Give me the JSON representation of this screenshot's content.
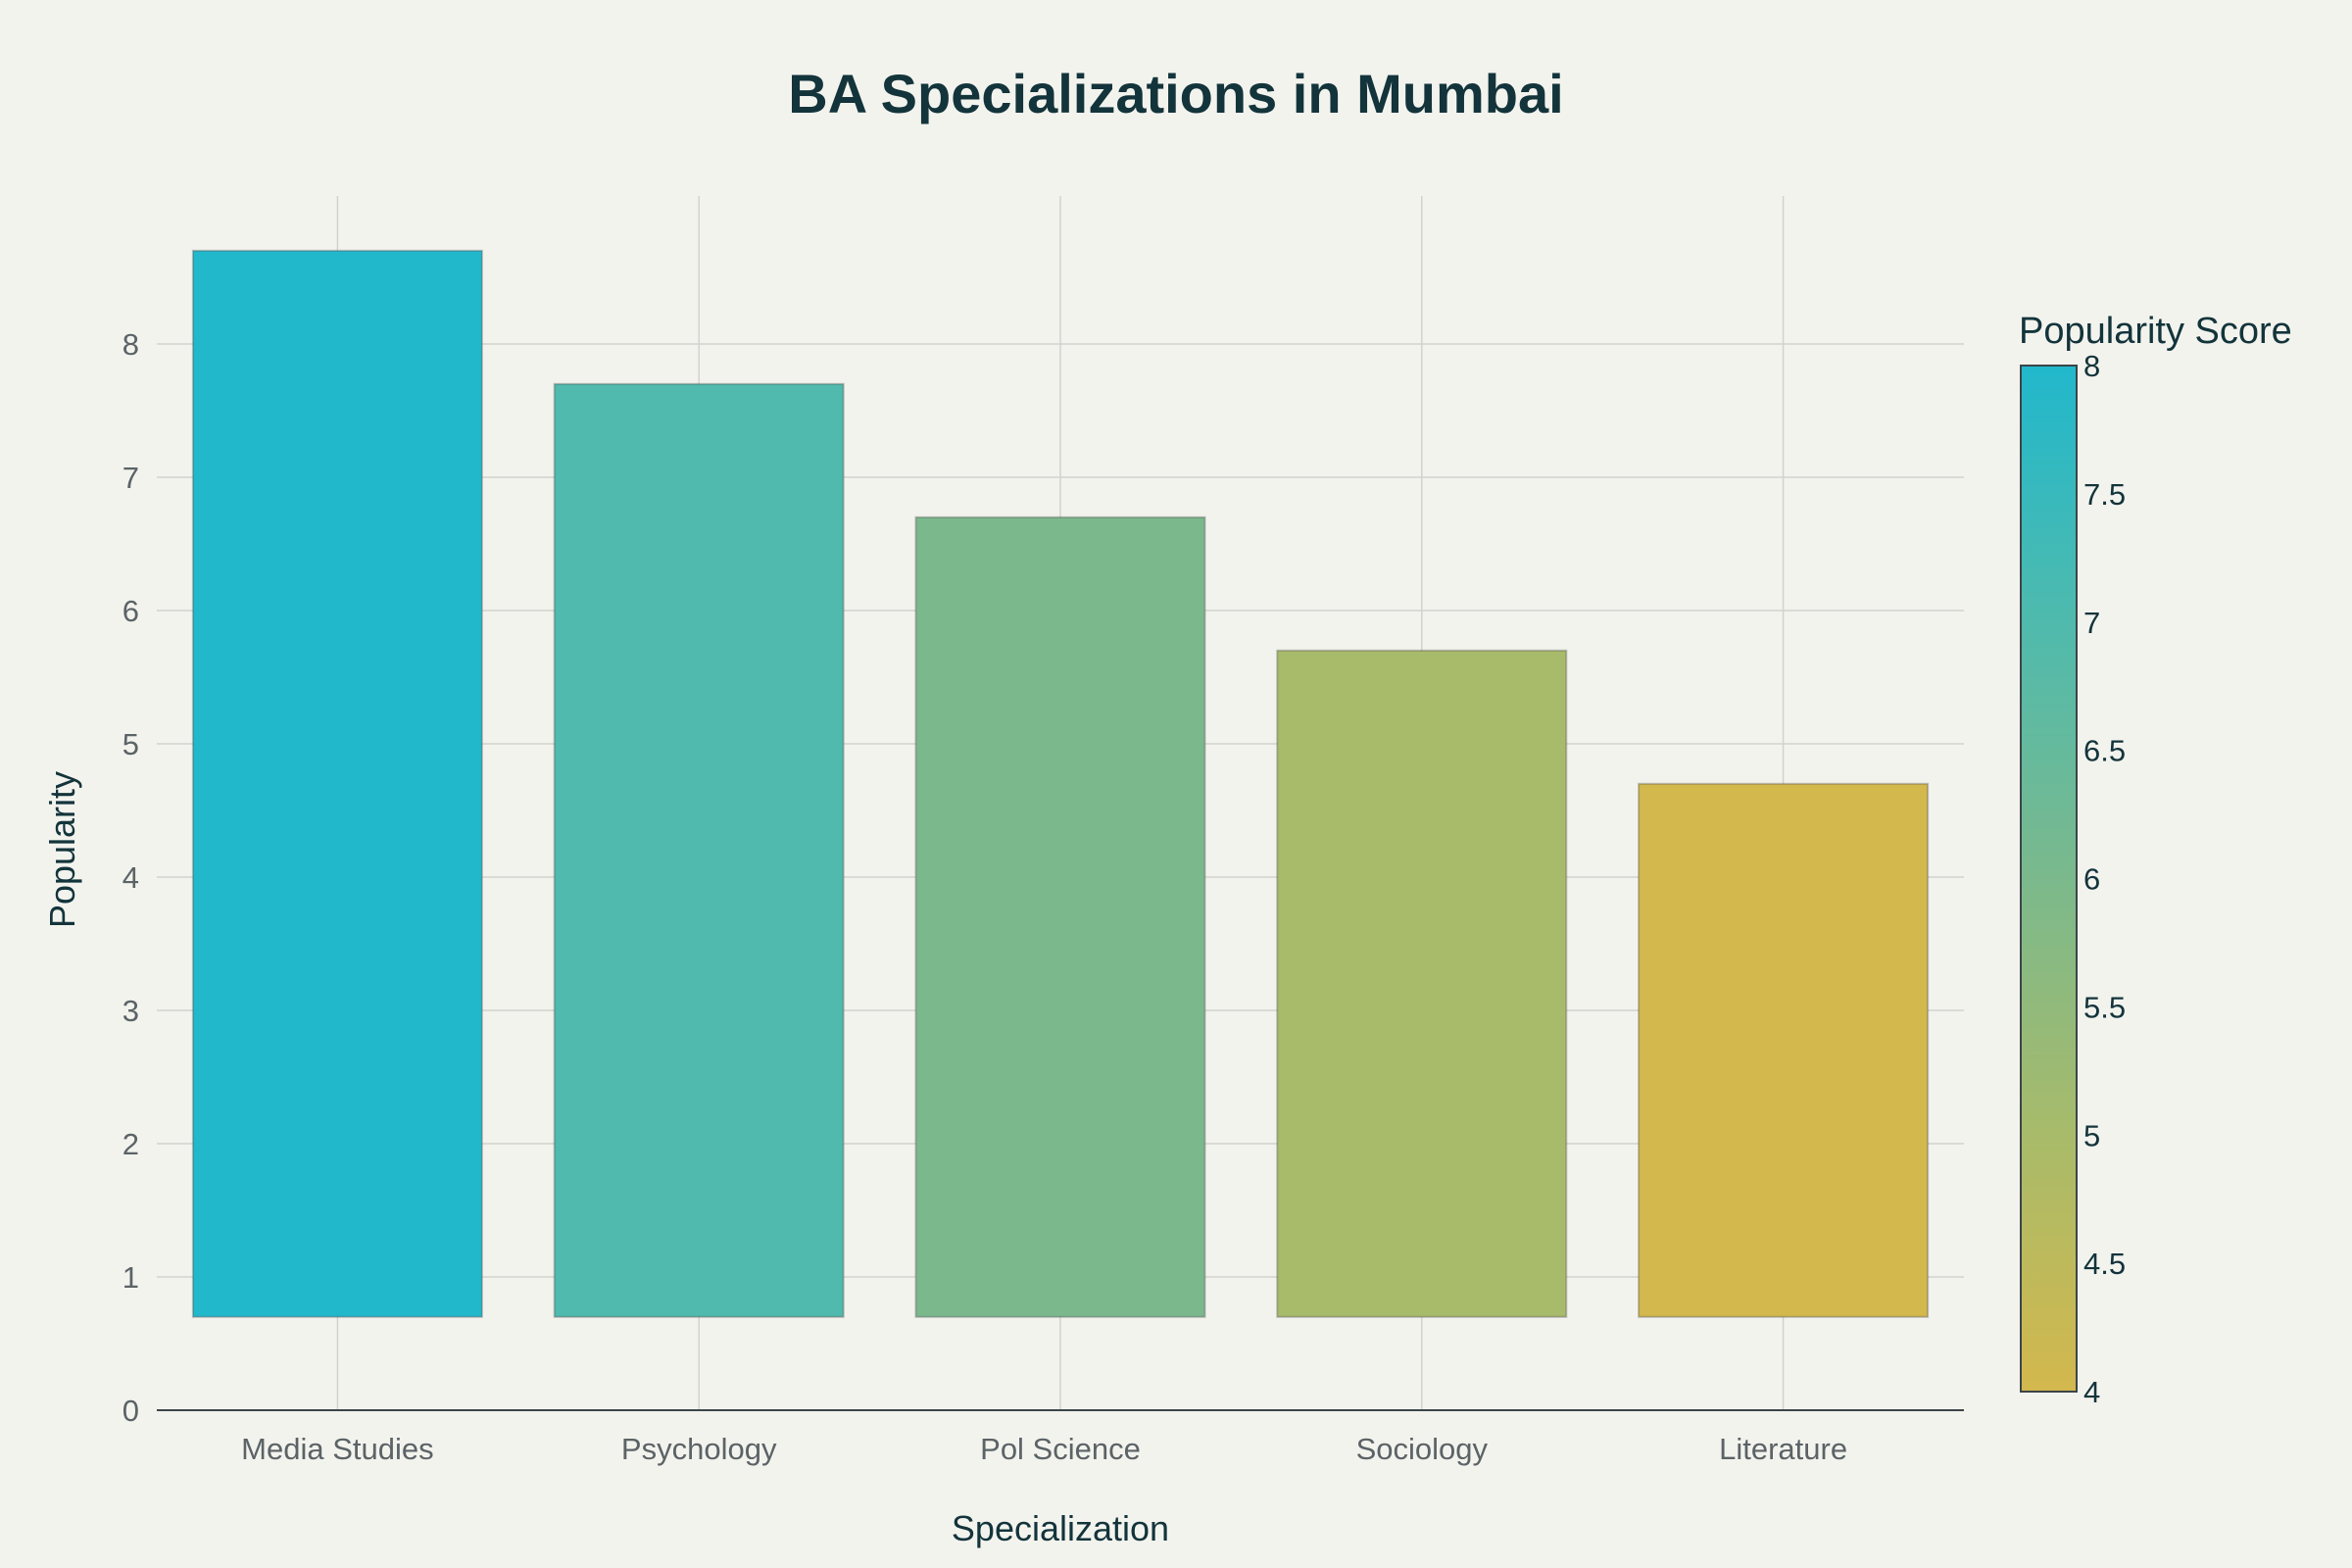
{
  "chart_data": {
    "type": "bar",
    "title": "BA Specializations in Mumbai",
    "xlabel": "Specialization",
    "ylabel": "Popularity",
    "categories": [
      "Media Studies",
      "Psychology",
      "Pol Science",
      "Sociology",
      "Literature"
    ],
    "values": [
      8.0,
      7.0,
      6.0,
      5.0,
      4.0
    ],
    "bar_base": 0.7,
    "ylim": [
      0,
      9.1
    ],
    "yticks": [
      "0",
      "1",
      "2",
      "3",
      "4",
      "5",
      "6",
      "7",
      "8"
    ],
    "grid": true,
    "colorbar": {
      "title": "Popularity Score",
      "range": [
        4,
        8
      ],
      "ticks": [
        "4",
        "4.5",
        "5",
        "5.5",
        "6",
        "6.5",
        "7",
        "7.5",
        "8"
      ],
      "colors": [
        "#d3b84d",
        "#a8bb6a",
        "#7bb98c",
        "#4fbaad",
        "#21b8cc"
      ]
    }
  }
}
